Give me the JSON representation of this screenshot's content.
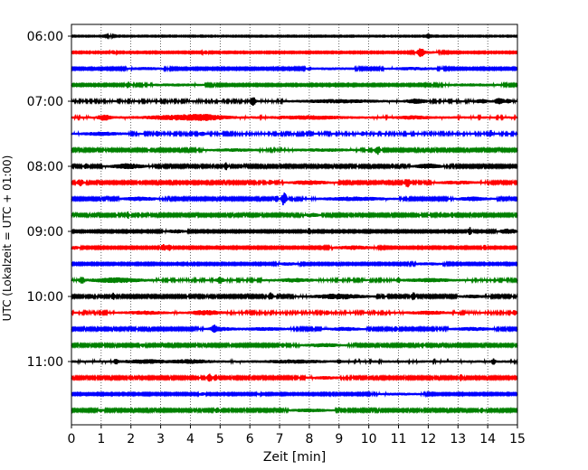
{
  "chart_data": {
    "type": "line",
    "title": "",
    "xlabel": "Zeit  [min]",
    "ylabel": "UTC (Lokalzeit = UTC + 01:00)",
    "xlim": [
      0,
      15
    ],
    "x_ticks": [
      "0",
      "1",
      "2",
      "3",
      "4",
      "5",
      "6",
      "7",
      "8",
      "9",
      "10",
      "11",
      "12",
      "13",
      "14",
      "15"
    ],
    "y_ticks": [
      "06:00",
      "07:00",
      "08:00",
      "09:00",
      "10:00",
      "11:00"
    ],
    "grid": "vertical dotted",
    "trace_interval_min": 15,
    "color_cycle": [
      "#000000",
      "#ff0000",
      "#0000ff",
      "#008000"
    ],
    "traces": [
      {
        "time": "06:00",
        "base": 0.3,
        "bursts": [
          [
            1.3,
            0.15,
            0.4
          ],
          [
            12.0,
            0.1,
            0.3
          ]
        ]
      },
      {
        "time": "06:15",
        "base": 0.4,
        "bursts": [
          [
            1.4,
            0.08,
            1.2
          ],
          [
            4.5,
            0.08,
            1.2
          ],
          [
            11.75,
            0.1,
            2.5
          ],
          [
            12.0,
            0.5,
            0.6
          ]
        ]
      },
      {
        "time": "06:30",
        "base": 0.5,
        "bursts": [
          [
            2.5,
            0.6,
            0.6
          ],
          [
            8.8,
            0.8,
            0.5
          ],
          [
            11.5,
            0.8,
            0.7
          ],
          [
            8.0,
            0.06,
            0.9
          ]
        ]
      },
      {
        "time": "06:45",
        "base": 0.5,
        "bursts": [
          [
            1.9,
            0.08,
            2.0
          ],
          [
            3.5,
            1.0,
            0.5
          ],
          [
            13.5,
            1.0,
            0.6
          ]
        ]
      },
      {
        "time": "07:00",
        "base": 0.7,
        "bursts": [
          [
            6.1,
            0.08,
            2.8
          ],
          [
            11.6,
            0.3,
            1.2
          ],
          [
            13.8,
            0.2,
            1.0
          ],
          [
            14.4,
            0.15,
            1.8
          ],
          [
            14.7,
            0.08,
            1.2
          ],
          [
            9.0,
            1.2,
            0.8
          ]
        ]
      },
      {
        "time": "07:15",
        "base": 0.8,
        "bursts": [
          [
            1.1,
            0.2,
            1.5
          ],
          [
            3.5,
            1.0,
            1.0
          ],
          [
            4.5,
            0.7,
            1.3
          ],
          [
            8.0,
            1.0,
            0.8
          ],
          [
            11.5,
            0.5,
            0.7
          ]
        ]
      },
      {
        "time": "07:30",
        "base": 0.7,
        "bursts": [
          [
            2.9,
            0.08,
            1.5
          ],
          [
            4.4,
            0.08,
            1.0
          ],
          [
            9.8,
            0.06,
            1.2
          ],
          [
            14.1,
            0.05,
            2.0
          ],
          [
            1.0,
            0.6,
            0.8
          ]
        ]
      },
      {
        "time": "07:45",
        "base": 0.6,
        "bursts": [
          [
            10.3,
            0.08,
            2.8
          ],
          [
            5.5,
            0.8,
            0.6
          ],
          [
            8.5,
            1.0,
            0.6
          ]
        ]
      },
      {
        "time": "08:00",
        "base": 0.6,
        "bursts": [
          [
            0.5,
            0.08,
            1.5
          ],
          [
            1.9,
            0.5,
            1.5
          ],
          [
            5.2,
            0.06,
            2.5
          ],
          [
            5.7,
            0.05,
            1.2
          ],
          [
            10.8,
            0.05,
            1.5
          ],
          [
            12.0,
            0.4,
            1.4
          ]
        ]
      },
      {
        "time": "08:15",
        "base": 0.6,
        "bursts": [
          [
            0.3,
            0.1,
            2.0
          ],
          [
            2.3,
            0.05,
            1.2
          ],
          [
            6.7,
            0.08,
            1.5
          ],
          [
            8.0,
            0.6,
            1.1
          ],
          [
            11.3,
            0.1,
            2.8
          ],
          [
            13.0,
            0.6,
            0.8
          ]
        ]
      },
      {
        "time": "08:30",
        "base": 0.6,
        "bursts": [
          [
            2.3,
            0.5,
            1.1
          ],
          [
            6.9,
            0.05,
            2.8
          ],
          [
            7.15,
            0.08,
            4.5
          ],
          [
            9.5,
            1.0,
            1.0
          ],
          [
            13.5,
            0.5,
            1.0
          ]
        ]
      },
      {
        "time": "08:45",
        "base": 0.6,
        "bursts": [
          [
            1.9,
            0.05,
            2.0
          ],
          [
            2.25,
            0.05,
            1.5
          ],
          [
            8.1,
            0.2,
            1.0
          ],
          [
            12.4,
            0.05,
            2.0
          ],
          [
            12.8,
            0.05,
            1.5
          ]
        ]
      },
      {
        "time": "09:00",
        "base": 0.5,
        "bursts": [
          [
            3.5,
            0.3,
            1.0
          ],
          [
            8.0,
            0.06,
            2.4
          ],
          [
            13.4,
            0.06,
            2.5
          ],
          [
            14.7,
            0.3,
            1.5
          ]
        ]
      },
      {
        "time": "09:15",
        "base": 0.5,
        "bursts": [
          [
            0.1,
            0.15,
            1.0
          ],
          [
            3.1,
            0.1,
            2.0
          ],
          [
            3.3,
            0.08,
            2.0
          ],
          [
            9.5,
            0.6,
            1.1
          ],
          [
            13.9,
            0.06,
            1.8
          ]
        ]
      },
      {
        "time": "09:30",
        "base": 0.5,
        "bursts": [
          [
            4.0,
            0.05,
            1.3
          ],
          [
            7.3,
            0.3,
            0.8
          ],
          [
            9.0,
            0.04,
            1.5
          ],
          [
            12.0,
            0.5,
            0.6
          ]
        ]
      },
      {
        "time": "09:45",
        "base": 0.7,
        "bursts": [
          [
            0.35,
            0.08,
            2.0
          ],
          [
            1.5,
            0.8,
            1.3
          ],
          [
            5.0,
            0.1,
            2.0
          ],
          [
            7.5,
            0.6,
            0.9
          ],
          [
            11.0,
            0.05,
            1.3
          ],
          [
            12.0,
            0.8,
            0.8
          ]
        ]
      },
      {
        "time": "10:00",
        "base": 0.6,
        "bursts": [
          [
            1.0,
            0.06,
            1.3
          ],
          [
            1.4,
            0.06,
            2.0
          ],
          [
            6.7,
            0.08,
            2.2
          ],
          [
            9.0,
            0.8,
            1.5
          ],
          [
            11.5,
            0.06,
            2.5
          ],
          [
            13.5,
            0.4,
            0.7
          ]
        ]
      },
      {
        "time": "10:15",
        "base": 0.7,
        "bursts": [
          [
            2.5,
            0.6,
            0.8
          ],
          [
            4.5,
            0.5,
            1.2
          ],
          [
            8.6,
            0.05,
            1.6
          ],
          [
            12.0,
            0.6,
            0.8
          ],
          [
            14.9,
            0.05,
            1.5
          ]
        ]
      },
      {
        "time": "10:30",
        "base": 0.6,
        "bursts": [
          [
            4.8,
            0.08,
            1.8
          ],
          [
            5.0,
            0.4,
            1.0
          ],
          [
            6.5,
            0.8,
            0.7
          ],
          [
            9.2,
            0.5,
            0.9
          ],
          [
            10.9,
            0.06,
            1.5
          ],
          [
            13.5,
            0.6,
            0.8
          ]
        ]
      },
      {
        "time": "10:45",
        "base": 0.6,
        "bursts": [
          [
            2.4,
            0.06,
            1.2
          ],
          [
            7.1,
            0.06,
            1.3
          ],
          [
            8.5,
            0.6,
            0.9
          ],
          [
            11.8,
            0.06,
            1.5
          ]
        ]
      },
      {
        "time": "11:00",
        "base": 0.8,
        "bursts": [
          [
            1.5,
            0.06,
            1.7
          ],
          [
            2.5,
            0.6,
            0.9
          ],
          [
            4.0,
            0.6,
            0.9
          ],
          [
            7.5,
            0.8,
            0.7
          ],
          [
            9.0,
            0.05,
            1.2
          ],
          [
            14.2,
            0.06,
            1.8
          ]
        ]
      },
      {
        "time": "11:15",
        "base": 0.6,
        "bursts": [
          [
            4.65,
            0.08,
            2.2
          ],
          [
            4.85,
            0.06,
            1.8
          ],
          [
            8.5,
            0.5,
            0.6
          ],
          [
            13.1,
            0.06,
            2.0
          ]
        ]
      },
      {
        "time": "11:30",
        "base": 0.5,
        "bursts": [
          [
            4.4,
            0.1,
            0.8
          ],
          [
            6.3,
            0.05,
            0.8
          ],
          [
            8.8,
            0.05,
            1.5
          ],
          [
            11.0,
            0.8,
            0.5
          ]
        ]
      },
      {
        "time": "11:45",
        "base": 0.6,
        "bursts": [
          [
            1.0,
            0.06,
            1.0
          ],
          [
            4.9,
            0.06,
            1.7
          ],
          [
            8.0,
            0.6,
            0.7
          ],
          [
            13.8,
            0.06,
            1.5
          ]
        ]
      }
    ]
  }
}
